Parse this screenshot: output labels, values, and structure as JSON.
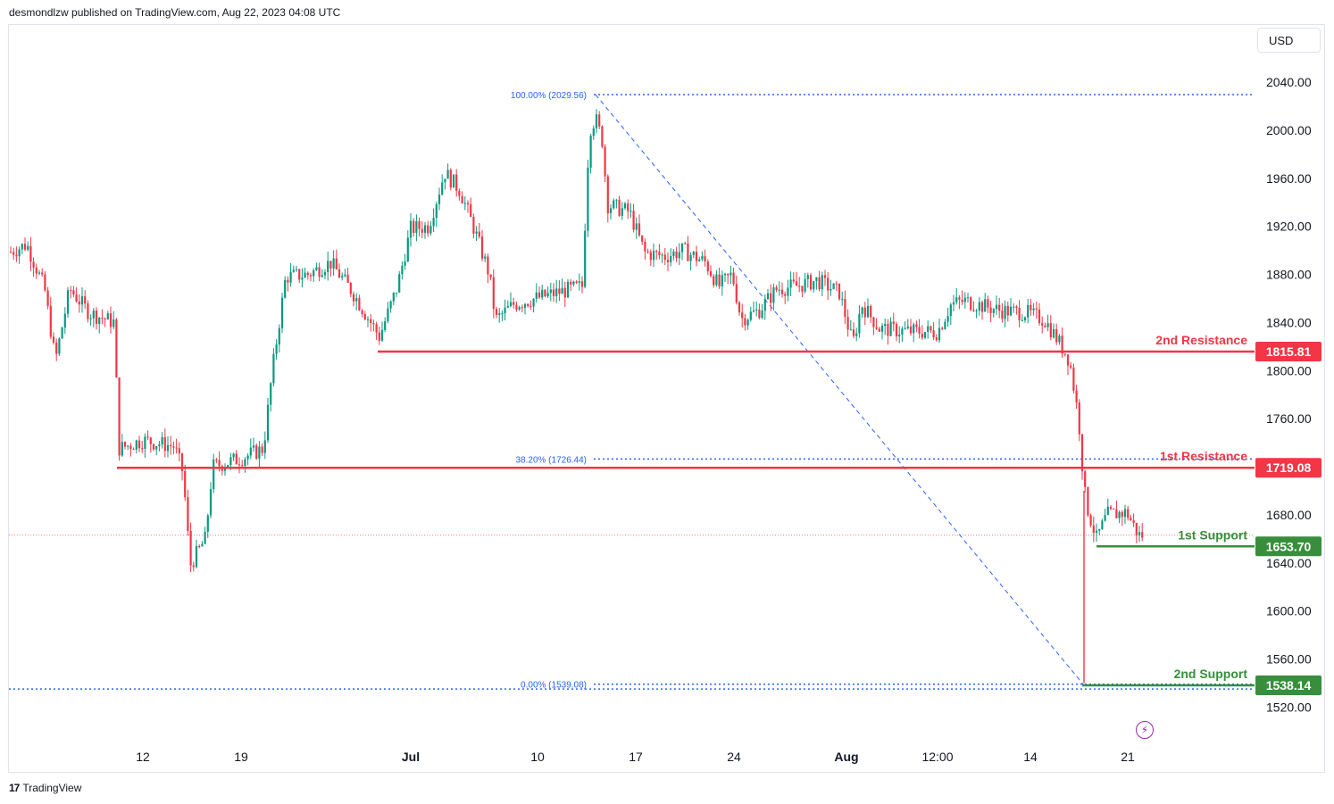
{
  "header": {
    "attribution": "desmondlzw published on TradingView.com, Aug 22, 2023 04:08 UTC"
  },
  "toolbar": {
    "currency_label": "USD"
  },
  "footer": {
    "brand": "TradingView",
    "logo_mark": "17"
  },
  "icons": {
    "flash": "lightning-icon"
  },
  "colors": {
    "resistance": "#f23645",
    "support": "#388e3c",
    "fib": "#2962ff",
    "up_candle": "#089981",
    "down_candle": "#f23645",
    "current_price_line": "#f23645"
  },
  "chart_data": {
    "type": "candlestick",
    "instrument_currency": "USD",
    "y_axis": {
      "range": [
        1505,
        2062
      ],
      "ticks": [
        "2040.00",
        "2000.00",
        "1960.00",
        "1920.00",
        "1880.00",
        "1840.00",
        "1800.00",
        "1760.00",
        "1680.00",
        "1640.00",
        "1600.00",
        "1560.00",
        "1520.00"
      ]
    },
    "x_axis": {
      "ticks": [
        "12",
        "19",
        "Jul",
        "10",
        "17",
        "24",
        "Aug",
        "12:00",
        "14",
        "21"
      ],
      "bold_ticks": [
        "Jul",
        "Aug"
      ]
    },
    "levels": [
      {
        "name": "2nd Resistance",
        "value": 1815.81,
        "badge": "1815.81",
        "kind": "resistance"
      },
      {
        "name": "1st Resistance",
        "value": 1719.08,
        "badge": "1719.08",
        "kind": "resistance"
      },
      {
        "name": "1st Support",
        "value": 1653.7,
        "badge": "1653.70",
        "kind": "support"
      },
      {
        "name": "2nd Support",
        "value": 1538.14,
        "badge": "1538.14",
        "kind": "support"
      }
    ],
    "fibonacci": [
      {
        "label": "100.00% (2029.56)",
        "value": 2029.56
      },
      {
        "label": "38.20% (1726.44)",
        "value": 1726.44
      },
      {
        "label": "0.00% (1539.08)",
        "value": 1539.08
      }
    ],
    "trend_line": {
      "from_value": 2029.56,
      "to_value": 1539.08
    },
    "current_price": 1663,
    "price_path": [
      {
        "x": 10,
        "p": 1898
      },
      {
        "x": 30,
        "p": 1905
      },
      {
        "x": 50,
        "p": 1868
      },
      {
        "x": 62,
        "p": 1808
      },
      {
        "x": 78,
        "p": 1868
      },
      {
        "x": 100,
        "p": 1848
      },
      {
        "x": 128,
        "p": 1840
      },
      {
        "x": 133,
        "p": 1735
      },
      {
        "x": 160,
        "p": 1742
      },
      {
        "x": 195,
        "p": 1737
      },
      {
        "x": 205,
        "p": 1715
      },
      {
        "x": 213,
        "p": 1638
      },
      {
        "x": 230,
        "p": 1660
      },
      {
        "x": 238,
        "p": 1720
      },
      {
        "x": 270,
        "p": 1727
      },
      {
        "x": 295,
        "p": 1735
      },
      {
        "x": 305,
        "p": 1800
      },
      {
        "x": 320,
        "p": 1878
      },
      {
        "x": 345,
        "p": 1880
      },
      {
        "x": 370,
        "p": 1890
      },
      {
        "x": 395,
        "p": 1865
      },
      {
        "x": 425,
        "p": 1828
      },
      {
        "x": 445,
        "p": 1870
      },
      {
        "x": 460,
        "p": 1918
      },
      {
        "x": 480,
        "p": 1920
      },
      {
        "x": 498,
        "p": 1965
      },
      {
        "x": 515,
        "p": 1950
      },
      {
        "x": 530,
        "p": 1920
      },
      {
        "x": 548,
        "p": 1880
      },
      {
        "x": 555,
        "p": 1842
      },
      {
        "x": 575,
        "p": 1855
      },
      {
        "x": 600,
        "p": 1860
      },
      {
        "x": 625,
        "p": 1865
      },
      {
        "x": 652,
        "p": 1870
      },
      {
        "x": 660,
        "p": 2000
      },
      {
        "x": 667,
        "p": 2010
      },
      {
        "x": 675,
        "p": 1990
      },
      {
        "x": 680,
        "p": 1938
      },
      {
        "x": 705,
        "p": 1932
      },
      {
        "x": 722,
        "p": 1898
      },
      {
        "x": 745,
        "p": 1895
      },
      {
        "x": 765,
        "p": 1900
      },
      {
        "x": 790,
        "p": 1890
      },
      {
        "x": 805,
        "p": 1870
      },
      {
        "x": 820,
        "p": 1880
      },
      {
        "x": 830,
        "p": 1843
      },
      {
        "x": 850,
        "p": 1850
      },
      {
        "x": 870,
        "p": 1868
      },
      {
        "x": 890,
        "p": 1870
      },
      {
        "x": 915,
        "p": 1875
      },
      {
        "x": 940,
        "p": 1865
      },
      {
        "x": 955,
        "p": 1822
      },
      {
        "x": 965,
        "p": 1855
      },
      {
        "x": 985,
        "p": 1835
      },
      {
        "x": 1010,
        "p": 1833
      },
      {
        "x": 1050,
        "p": 1832
      },
      {
        "x": 1065,
        "p": 1855
      },
      {
        "x": 1080,
        "p": 1858
      },
      {
        "x": 1120,
        "p": 1850
      },
      {
        "x": 1150,
        "p": 1848
      },
      {
        "x": 1170,
        "p": 1842
      },
      {
        "x": 1185,
        "p": 1825
      },
      {
        "x": 1198,
        "p": 1808
      },
      {
        "x": 1208,
        "p": 1760
      },
      {
        "x": 1212,
        "p": 1722
      },
      {
        "x": 1216,
        "p": 1690
      },
      {
        "x": 1228,
        "p": 1660
      },
      {
        "x": 1240,
        "p": 1680
      },
      {
        "x": 1262,
        "p": 1682
      },
      {
        "x": 1275,
        "p": 1663
      },
      {
        "x": 1282,
        "p": 1663
      }
    ]
  }
}
